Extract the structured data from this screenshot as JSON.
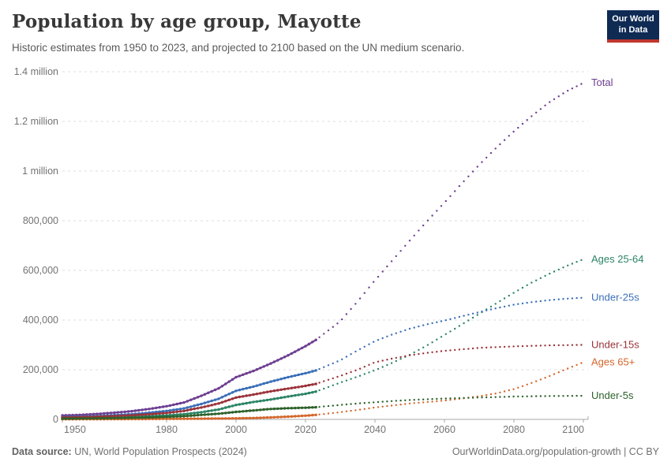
{
  "header": {
    "title": "Population by age group, Mayotte",
    "subtitle": "Historic estimates from 1950 to 2023, and projected to 2100 based on the UN medium scenario.",
    "logo_line1": "Our World",
    "logo_line2": "in Data"
  },
  "footer": {
    "source_label": "Data source:",
    "source_text": " UN, World Population Prospects (2024)",
    "link_text": "OurWorldinData.org/population-growth | CC BY"
  },
  "colors": {
    "accent_navy": "#0f2b54",
    "accent_red": "#c0362c",
    "grid": "#dcdcdc",
    "axis": "#a8a8a8",
    "tick_label": "#737373"
  },
  "chart_data": {
    "type": "line",
    "title": "Population by age group, Mayotte",
    "xlabel": "",
    "ylabel": "",
    "grid": true,
    "legend_position": "right-end-labels",
    "x_range": [
      1950,
      2100
    ],
    "ylim": [
      0,
      1400000
    ],
    "x_ticks": [
      1950,
      1980,
      2000,
      2020,
      2040,
      2060,
      2080,
      2100
    ],
    "y_ticks": [
      {
        "value": 0,
        "label": "0"
      },
      {
        "value": 200000,
        "label": "200,000"
      },
      {
        "value": 400000,
        "label": "400,000"
      },
      {
        "value": 600000,
        "label": "600,000"
      },
      {
        "value": 800000,
        "label": "800,000"
      },
      {
        "value": 1000000,
        "label": "1 million"
      },
      {
        "value": 1200000,
        "label": "1.2 million"
      },
      {
        "value": 1400000,
        "label": "1.4 million"
      }
    ],
    "historic_until": 2023,
    "years": [
      1950,
      1955,
      1960,
      1965,
      1970,
      1975,
      1980,
      1985,
      1990,
      1995,
      2000,
      2005,
      2010,
      2015,
      2020,
      2023,
      2030,
      2035,
      2040,
      2045,
      2050,
      2055,
      2060,
      2065,
      2070,
      2075,
      2080,
      2085,
      2090,
      2095,
      2100
    ],
    "series": [
      {
        "name": "Total",
        "color": "#6D3E91",
        "values": [
          16000,
          18000,
          22000,
          27000,
          33000,
          42000,
          53000,
          68000,
          95000,
          125000,
          170000,
          195000,
          225000,
          258000,
          295000,
          320000,
          395000,
          475000,
          560000,
          640000,
          720000,
          798000,
          873000,
          950000,
          1025000,
          1095000,
          1160000,
          1220000,
          1275000,
          1320000,
          1355000
        ]
      },
      {
        "name": "Ages 25-64",
        "color": "#2C8465",
        "values": [
          5000,
          6000,
          7000,
          8500,
          10500,
          13000,
          16000,
          21000,
          29000,
          40000,
          58000,
          70000,
          80000,
          92000,
          103000,
          112000,
          148000,
          172000,
          198000,
          228000,
          260000,
          298000,
          340000,
          382000,
          425000,
          468000,
          510000,
          550000,
          585000,
          617000,
          645000
        ]
      },
      {
        "name": "Under-25s",
        "color": "#3B6FB8",
        "values": [
          10000,
          11000,
          13500,
          17000,
          21000,
          27000,
          34000,
          44000,
          62000,
          83000,
          115000,
          132000,
          152000,
          170000,
          186000,
          197000,
          238000,
          278000,
          315000,
          342000,
          365000,
          383000,
          398000,
          415000,
          432000,
          448000,
          462000,
          472000,
          480000,
          486000,
          490000
        ]
      },
      {
        "name": "Under-15s",
        "color": "#9A3339",
        "values": [
          8000,
          9000,
          11000,
          13500,
          16500,
          21000,
          26000,
          34000,
          48000,
          64000,
          88000,
          100000,
          113000,
          124000,
          135000,
          143000,
          175000,
          200000,
          230000,
          245000,
          258000,
          268000,
          276000,
          282000,
          288000,
          291000,
          294000,
          296000,
          298000,
          299000,
          300000
        ]
      },
      {
        "name": "Ages 65+",
        "color": "#D4672C",
        "values": [
          700,
          800,
          1000,
          1200,
          1500,
          1800,
          2200,
          2600,
          3000,
          3500,
          4200,
          5500,
          8000,
          11000,
          15000,
          18000,
          29000,
          38000,
          48000,
          56000,
          64000,
          70000,
          76000,
          84000,
          93000,
          105000,
          122000,
          146000,
          173000,
          202000,
          230000
        ]
      },
      {
        "name": "Under-5s",
        "color": "#2E622B",
        "values": [
          3000,
          3500,
          4200,
          5000,
          6200,
          7800,
          10000,
          13000,
          18000,
          23000,
          30000,
          36000,
          42000,
          45000,
          47000,
          49000,
          58000,
          64000,
          69000,
          74000,
          78000,
          81000,
          84000,
          86000,
          88000,
          90000,
          92000,
          93000,
          94000,
          94500,
          95000
        ]
      }
    ]
  }
}
